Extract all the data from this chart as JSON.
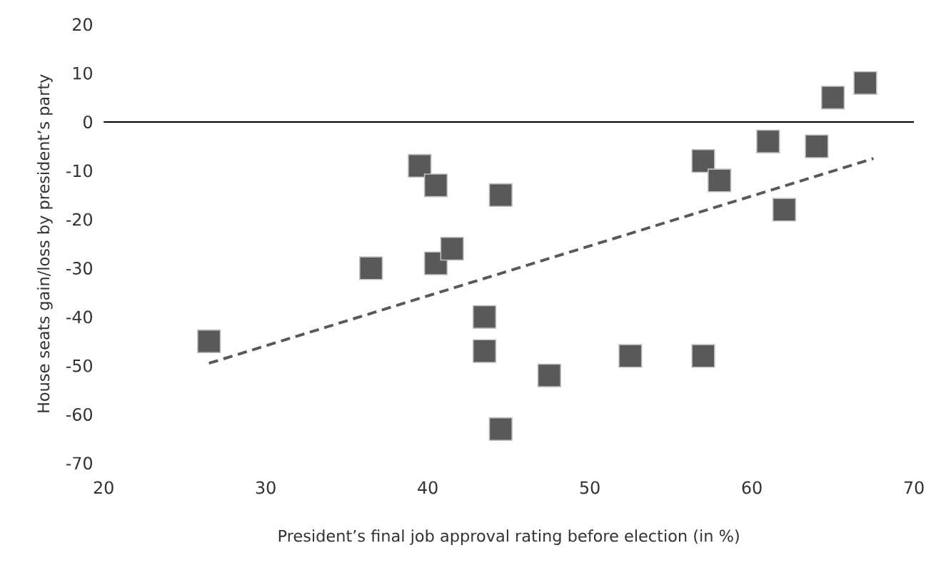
{
  "chart_data": {
    "type": "scatter",
    "xlabel": "President’s final job approval rating before election (in %)",
    "ylabel": "House seats gain/loss by president’s party",
    "xlim": [
      20,
      70
    ],
    "ylim": [
      -70,
      20
    ],
    "xticks": [
      20,
      30,
      40,
      50,
      60,
      70
    ],
    "yticks": [
      -70,
      -60,
      -50,
      -40,
      -30,
      -20,
      -10,
      0,
      10,
      20
    ],
    "grid": false,
    "marker": "square",
    "ref_lines": [
      {
        "axis": "y",
        "value": 0,
        "color": "#000000"
      }
    ],
    "series": [
      {
        "color": "#595959",
        "x": [
          26.5,
          36.5,
          39.5,
          40.5,
          40.5,
          41.5,
          43.5,
          43.5,
          44.5,
          44.5,
          47.5,
          52.5,
          57,
          57,
          58,
          61,
          62,
          64,
          65,
          67
        ],
        "values": [
          -45,
          -30,
          -9,
          -13,
          -29,
          -26,
          -40,
          -47,
          -15,
          -63,
          -52,
          -48,
          -48,
          -8,
          -12,
          -4,
          -18,
          -5,
          5,
          8
        ]
      },
      {
        "type": "line",
        "color": "#595959",
        "line_style": "dashed",
        "marker": "none",
        "x": [
          26.5,
          67.5
        ],
        "values": [
          -49.5,
          -7.5
        ]
      }
    ]
  }
}
